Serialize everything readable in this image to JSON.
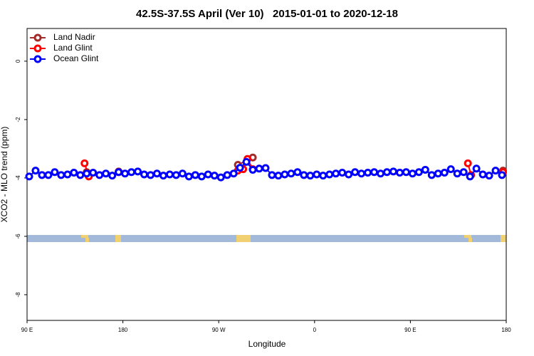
{
  "chart_data": {
    "type": "line",
    "title": "42.5S-37.5S April (Ver 10)   2015-01-01 to 2020-12-18",
    "x_label": "Longitude",
    "y_label": "XCO2 - MLO trend (ppm)",
    "xlim": [
      90,
      540
    ],
    "ylim": [
      -8.88,
      1.12
    ],
    "xticks": [
      {
        "value": 90,
        "label": "90 E"
      },
      180,
      {
        "value": 270,
        "label": "90 W"
      },
      {
        "value": 360,
        "label": "0"
      },
      {
        "value": 450,
        "label": "90 E"
      },
      {
        "value": 540,
        "label": "180"
      }
    ],
    "yticks": [
      -8,
      -6,
      -4,
      -2,
      0
    ],
    "legend": "top-left",
    "series": [
      {
        "name": "Land Nadir",
        "color": "#a52a2a",
        "x": [
          146,
          null,
          176,
          null,
          288,
          302,
          null,
          537
        ],
        "values": [
          -3.8,
          null,
          -3.78,
          null,
          -3.55,
          -3.3,
          null,
          -3.75
        ]
      },
      {
        "name": "Land Glint",
        "color": "#ff0000",
        "x": [
          144,
          148,
          null,
          176,
          null,
          288,
          293,
          297,
          302,
          null,
          504,
          507,
          null,
          537
        ],
        "values": [
          -3.5,
          -3.95,
          null,
          -3.8,
          null,
          -3.75,
          -3.7,
          -3.35,
          -3.7,
          null,
          -3.5,
          -3.9,
          null,
          -3.8
        ]
      },
      {
        "name": "Ocean Glint",
        "color": "#0000ff",
        "x": [
          92,
          98,
          104,
          110,
          116,
          122,
          128,
          134,
          140,
          146,
          152,
          158,
          164,
          170,
          176,
          182,
          188,
          194,
          200,
          206,
          212,
          218,
          224,
          230,
          236,
          242,
          248,
          254,
          260,
          266,
          272,
          278,
          284,
          290,
          296,
          302,
          308,
          314,
          320,
          326,
          332,
          338,
          344,
          350,
          356,
          362,
          368,
          374,
          380,
          386,
          392,
          398,
          404,
          410,
          416,
          422,
          428,
          434,
          440,
          446,
          452,
          458,
          464,
          470,
          476,
          482,
          488,
          494,
          500,
          506,
          512,
          518,
          524,
          530,
          536
        ],
        "values": [
          -3.95,
          -3.75,
          -3.9,
          -3.9,
          -3.8,
          -3.9,
          -3.88,
          -3.82,
          -3.9,
          -3.85,
          -3.82,
          -3.9,
          -3.85,
          -3.92,
          -3.8,
          -3.85,
          -3.8,
          -3.78,
          -3.88,
          -3.9,
          -3.85,
          -3.92,
          -3.88,
          -3.9,
          -3.85,
          -3.95,
          -3.9,
          -3.95,
          -3.88,
          -3.92,
          -3.98,
          -3.9,
          -3.85,
          -3.65,
          -3.45,
          -3.72,
          -3.68,
          -3.66,
          -3.9,
          -3.92,
          -3.88,
          -3.85,
          -3.8,
          -3.9,
          -3.92,
          -3.88,
          -3.92,
          -3.88,
          -3.85,
          -3.82,
          -3.88,
          -3.8,
          -3.85,
          -3.82,
          -3.8,
          -3.85,
          -3.8,
          -3.78,
          -3.82,
          -3.8,
          -3.85,
          -3.8,
          -3.72,
          -3.9,
          -3.85,
          -3.82,
          -3.7,
          -3.85,
          -3.8,
          -3.95,
          -3.68,
          -3.88,
          -3.92,
          -3.75,
          -3.9
        ]
      }
    ]
  }
}
